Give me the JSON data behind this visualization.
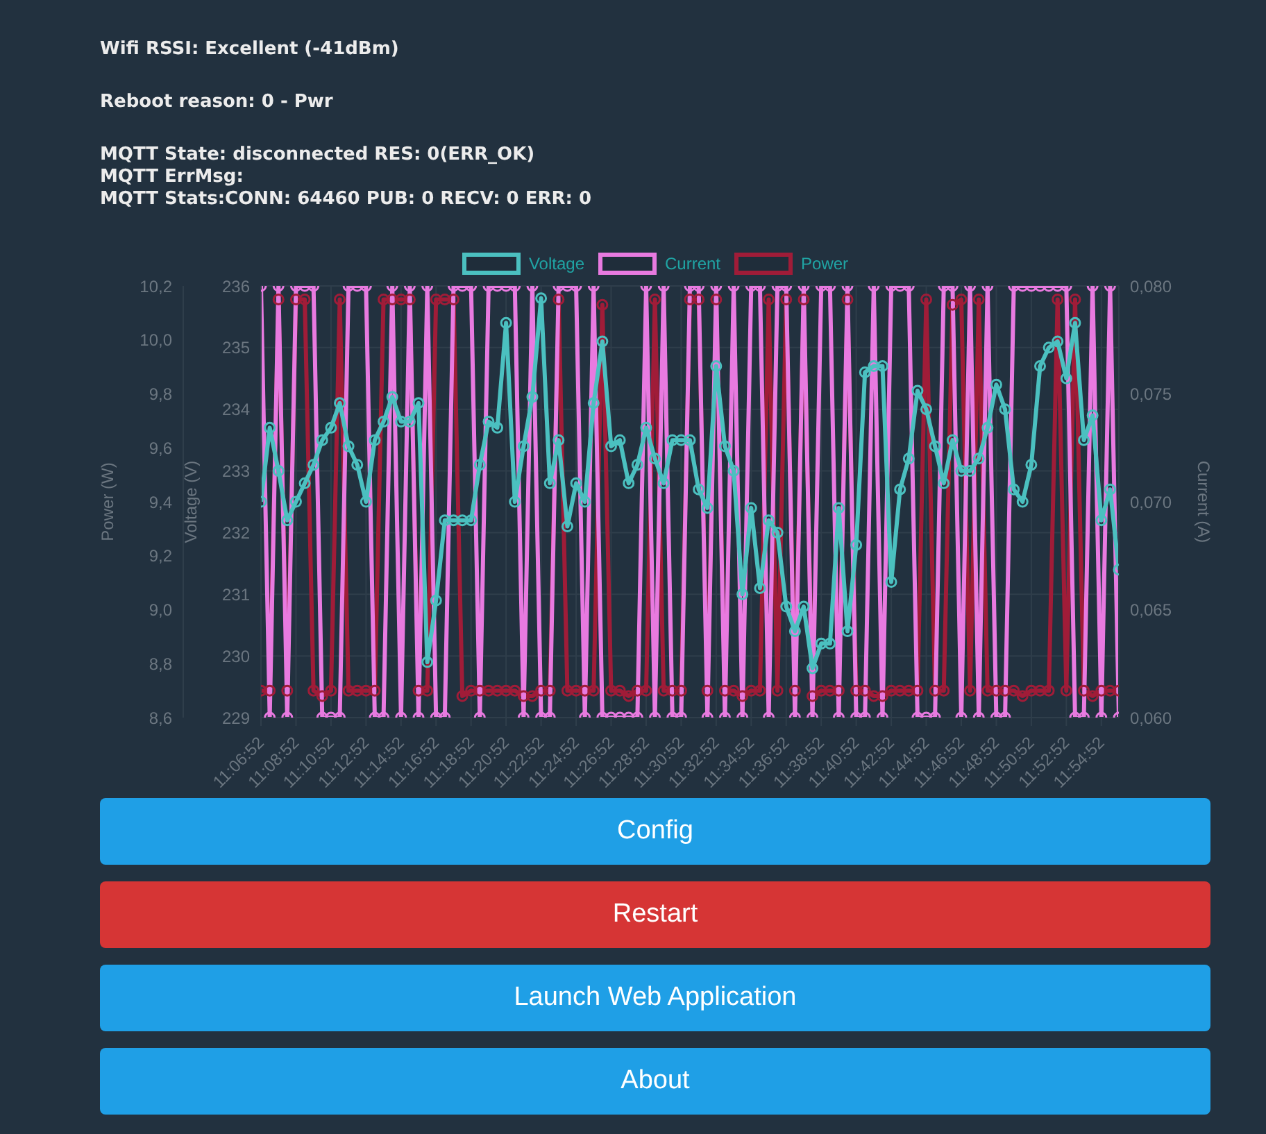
{
  "chart_data": {
    "type": "line",
    "legend": "top",
    "grid": true,
    "marker": "circle",
    "ylabel": "Voltage (V)",
    "y2label": "Current (A)",
    "y3label": "Power (W)",
    "ylim": [
      229,
      236
    ],
    "yticks": [
      229,
      230,
      231,
      232,
      233,
      234,
      235,
      236
    ],
    "y2lim": [
      0.06,
      0.08
    ],
    "y2ticks": [
      {
        "value": 0.06,
        "label": "0,060"
      },
      {
        "value": 0.065,
        "label": "0,065"
      },
      {
        "value": 0.07,
        "label": "0,070"
      },
      {
        "value": 0.075,
        "label": "0,075"
      },
      {
        "value": 0.08,
        "label": "0,080"
      }
    ],
    "y3lim": [
      8.6,
      10.2
    ],
    "y3ticks": [
      {
        "value": 8.6,
        "label": "8,6"
      },
      {
        "value": 8.8,
        "label": "8,8"
      },
      {
        "value": 9.0,
        "label": "9,0"
      },
      {
        "value": 9.2,
        "label": "9,2"
      },
      {
        "value": 9.4,
        "label": "9,4"
      },
      {
        "value": 9.6,
        "label": "9,6"
      },
      {
        "value": 9.8,
        "label": "9,8"
      },
      {
        "value": 10.0,
        "label": "10,0"
      },
      {
        "value": 10.2,
        "label": "10,2"
      }
    ],
    "annotations": [
      "Wifi RSSI: Excellent (-41dBm)",
      "Reboot reason: 0 - Pwr",
      "MQTT State: disconnected RES: 0(ERR_OK)",
      "MQTT ErrMsg:",
      "MQTT Stats:CONN: 64460 PUB: 0 RECV: 0 ERR: 0",
      "Config",
      "Restart",
      "Launch Web Application",
      "About"
    ],
    "categories": [
      "11:06:52",
      null,
      null,
      null,
      "11:08:52",
      null,
      null,
      null,
      "11:10:52",
      null,
      null,
      null,
      "11:12:52",
      null,
      null,
      null,
      "11:14:52",
      null,
      null,
      null,
      "11:16:52",
      null,
      null,
      null,
      "11:18:52",
      null,
      null,
      null,
      "11:20:52",
      null,
      null,
      null,
      "11:22:52",
      null,
      null,
      null,
      "11:24:52",
      null,
      null,
      null,
      "11:26:52",
      null,
      null,
      null,
      "11:28:52",
      null,
      null,
      null,
      "11:30:52",
      null,
      null,
      null,
      "11:32:52",
      null,
      null,
      null,
      "11:34:52",
      null,
      null,
      null,
      "11:36:52",
      null,
      null,
      null,
      "11:38:52",
      null,
      null,
      null,
      "11:40:52",
      null,
      null,
      null,
      "11:42:52",
      null,
      null,
      null,
      "11:44:52",
      null,
      null,
      null,
      "11:46:52",
      null,
      null,
      null,
      "11:48:52",
      null,
      null,
      null,
      "11:50:52",
      null,
      null,
      null,
      "11:52:52",
      null,
      null,
      null,
      "11:54:52",
      null,
      null
    ],
    "series": [
      {
        "name": "Voltage",
        "color": "#4bc0c0",
        "axis": "y",
        "values": [
          232.5,
          233.7,
          233.0,
          232.2,
          232.5,
          232.8,
          233.1,
          233.5,
          233.7,
          234.1,
          233.4,
          233.1,
          232.5,
          233.5,
          233.8,
          234.2,
          233.8,
          233.8,
          234.1,
          229.9,
          230.9,
          232.2,
          232.2,
          232.2,
          232.2,
          233.1,
          233.8,
          233.7,
          235.4,
          232.5,
          233.4,
          234.2,
          235.8,
          232.8,
          233.5,
          232.1,
          232.8,
          232.5,
          234.1,
          235.1,
          233.4,
          233.5,
          232.8,
          233.1,
          233.7,
          233.2,
          232.8,
          233.5,
          233.5,
          233.5,
          232.7,
          232.4,
          234.7,
          233.4,
          233.0,
          231.0,
          232.4,
          231.1,
          232.2,
          232.0,
          230.8,
          230.4,
          230.8,
          229.8,
          230.2,
          230.2,
          232.4,
          230.4,
          231.8,
          234.6,
          234.7,
          234.7,
          231.2,
          232.7,
          233.2,
          234.3,
          234.0,
          233.4,
          232.8,
          233.5,
          233.0,
          233.0,
          233.2,
          233.7,
          234.4,
          234.0,
          232.7,
          232.5,
          233.1,
          234.7,
          235.0,
          235.1,
          234.5,
          235.4,
          233.5,
          233.9,
          232.2,
          232.7,
          231.4
        ]
      },
      {
        "name": "Current",
        "color": "#e87ae0",
        "axis": "y2",
        "values": [
          0.08,
          0.06,
          0.08,
          0.06,
          0.08,
          0.08,
          0.08,
          0.06,
          0.06,
          0.06,
          0.08,
          0.08,
          0.08,
          0.06,
          0.06,
          0.08,
          0.06,
          0.08,
          0.06,
          0.08,
          0.06,
          0.06,
          0.08,
          0.08,
          0.08,
          0.06,
          0.08,
          0.08,
          0.08,
          0.08,
          0.06,
          0.08,
          0.06,
          0.06,
          0.08,
          0.08,
          0.08,
          0.06,
          0.08,
          0.06,
          0.06,
          0.06,
          0.06,
          0.06,
          0.08,
          0.06,
          0.08,
          0.06,
          0.06,
          0.08,
          0.08,
          0.06,
          0.08,
          0.06,
          0.08,
          0.06,
          0.08,
          0.08,
          0.06,
          0.08,
          0.08,
          0.06,
          0.08,
          0.06,
          0.08,
          0.08,
          0.06,
          0.08,
          0.06,
          0.06,
          0.08,
          0.06,
          0.08,
          0.08,
          0.08,
          0.06,
          0.06,
          0.06,
          0.08,
          0.08,
          0.06,
          0.08,
          0.06,
          0.08,
          0.06,
          0.06,
          0.08,
          0.08,
          0.08,
          0.08,
          0.08,
          0.08,
          0.08,
          0.06,
          0.06,
          0.08,
          0.06,
          0.08,
          0.06
        ]
      },
      {
        "name": "Power",
        "color": "#a01c38",
        "axis": "y3",
        "values": [
          8.7,
          8.7,
          10.15,
          8.7,
          10.15,
          10.15,
          8.7,
          8.68,
          8.7,
          10.15,
          8.7,
          8.7,
          8.7,
          8.7,
          10.15,
          10.15,
          10.15,
          10.15,
          8.7,
          8.7,
          10.15,
          10.15,
          10.15,
          8.68,
          8.7,
          8.7,
          8.7,
          8.7,
          8.7,
          8.7,
          8.68,
          8.68,
          8.7,
          8.7,
          10.15,
          8.7,
          8.7,
          8.7,
          8.7,
          10.13,
          8.7,
          8.7,
          8.68,
          8.7,
          8.7,
          10.15,
          8.7,
          8.7,
          8.7,
          10.15,
          10.15,
          8.7,
          10.15,
          8.7,
          8.7,
          8.68,
          8.7,
          8.7,
          10.15,
          8.7,
          10.15,
          8.7,
          10.15,
          8.68,
          8.7,
          8.7,
          8.7,
          10.15,
          8.7,
          8.7,
          8.68,
          8.68,
          8.7,
          8.7,
          8.7,
          8.7,
          10.15,
          8.7,
          8.7,
          10.13,
          10.15,
          8.7,
          10.15,
          8.7,
          8.7,
          8.7,
          8.7,
          8.68,
          8.7,
          8.7,
          8.7,
          10.15,
          8.7,
          10.15,
          8.7,
          8.68,
          8.7,
          8.7,
          8.7
        ]
      }
    ]
  }
}
